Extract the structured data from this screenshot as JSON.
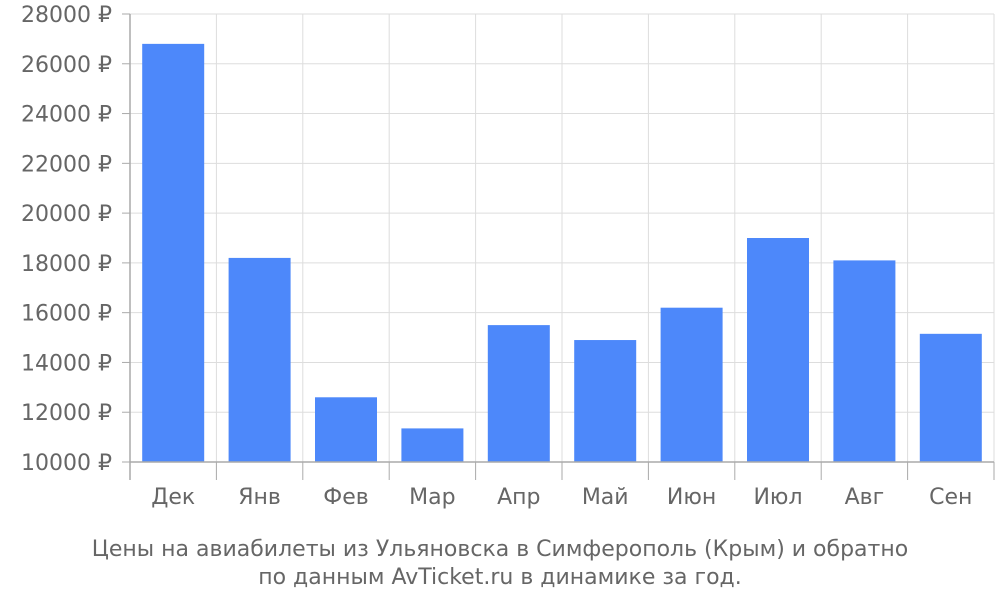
{
  "chart_data": {
    "type": "bar",
    "categories": [
      "Дек",
      "Янв",
      "Фев",
      "Мар",
      "Апр",
      "Май",
      "Июн",
      "Июл",
      "Авг",
      "Сен"
    ],
    "values": [
      26800,
      18200,
      12600,
      11350,
      15500,
      14900,
      16200,
      19000,
      18100,
      15150
    ],
    "y_ticks": [
      10000,
      12000,
      14000,
      16000,
      18000,
      20000,
      22000,
      24000,
      26000,
      28000
    ],
    "y_tick_suffix": " ₽",
    "ylim": [
      10000,
      28000
    ],
    "grid": true,
    "bar_color": "#4d88fa",
    "caption_lines": [
      "Цены на авиабилеты из Ульяновска в Симферополь (Крым) и обратно",
      "по данным AvTicket.ru в динамике за год."
    ]
  }
}
